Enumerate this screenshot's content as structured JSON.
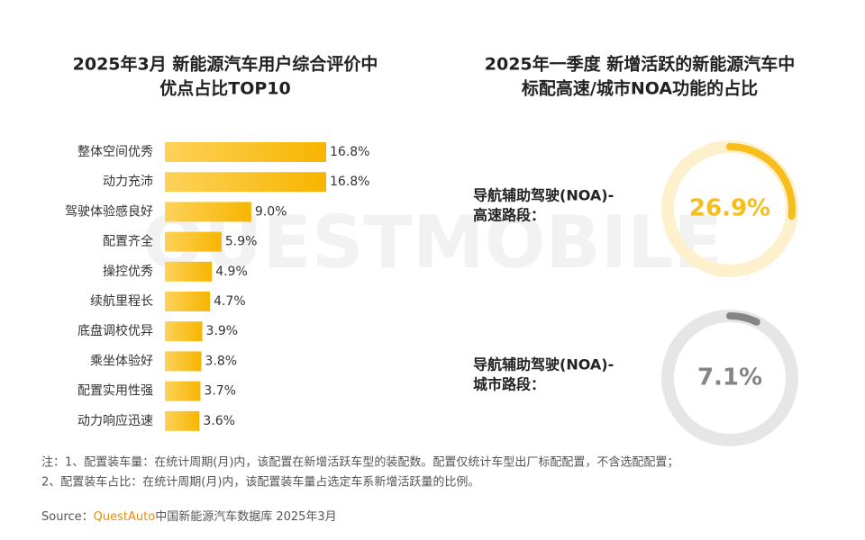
{
  "watermark": "QUESTMOBILE",
  "chart_data": [
    {
      "type": "hbar",
      "title": [
        "2025年3月 新能源汽车用户综合评价中",
        "优点占比TOP10"
      ],
      "categories": [
        "整体空间优秀",
        "动力充沛",
        "驾驶体验感良好",
        "配置齐全",
        "操控优秀",
        "续航里程长",
        "底盘调校优异",
        "乘坐体验好",
        "配置实用性强",
        "动力响应迅速"
      ],
      "values": [
        16.8,
        16.8,
        9.0,
        5.9,
        4.9,
        4.7,
        3.9,
        3.8,
        3.7,
        3.6
      ],
      "value_labels": [
        "16.8%",
        "16.8%",
        "9.0%",
        "5.9%",
        "4.9%",
        "4.7%",
        "3.9%",
        "3.8%",
        "3.7%",
        "3.6%"
      ],
      "color": "#f7b500"
    },
    {
      "type": "donut",
      "title": [
        "2025年一季度 新增活跃的新能源汽车中",
        "标配高速/城市NOA功能的占比"
      ],
      "categories": [
        [
          "导航辅助驾驶(NOA)-",
          "高速路段："
        ],
        [
          "导航辅助驾驶(NOA)-",
          "城市路段："
        ]
      ],
      "values": [
        26.9,
        7.1
      ],
      "value_labels": [
        "26.9%",
        "7.1%"
      ],
      "colors": [
        "#f7bd1a",
        "#858585"
      ]
    }
  ],
  "notes": [
    "注：1、配置装车量：在统计周期(月)内，该配置在新增活跃车型的装配数。配置仅统计车型出厂标配配置，不含选配配置；",
    "2、配置装车占比：在统计周期(月)内，该配置装车量占选定车系新增活跃量的比例。"
  ],
  "source": {
    "prefix": "Source：",
    "brand": "QuestAuto",
    "text": "中国新能源汽车数据库 2025年3月"
  }
}
